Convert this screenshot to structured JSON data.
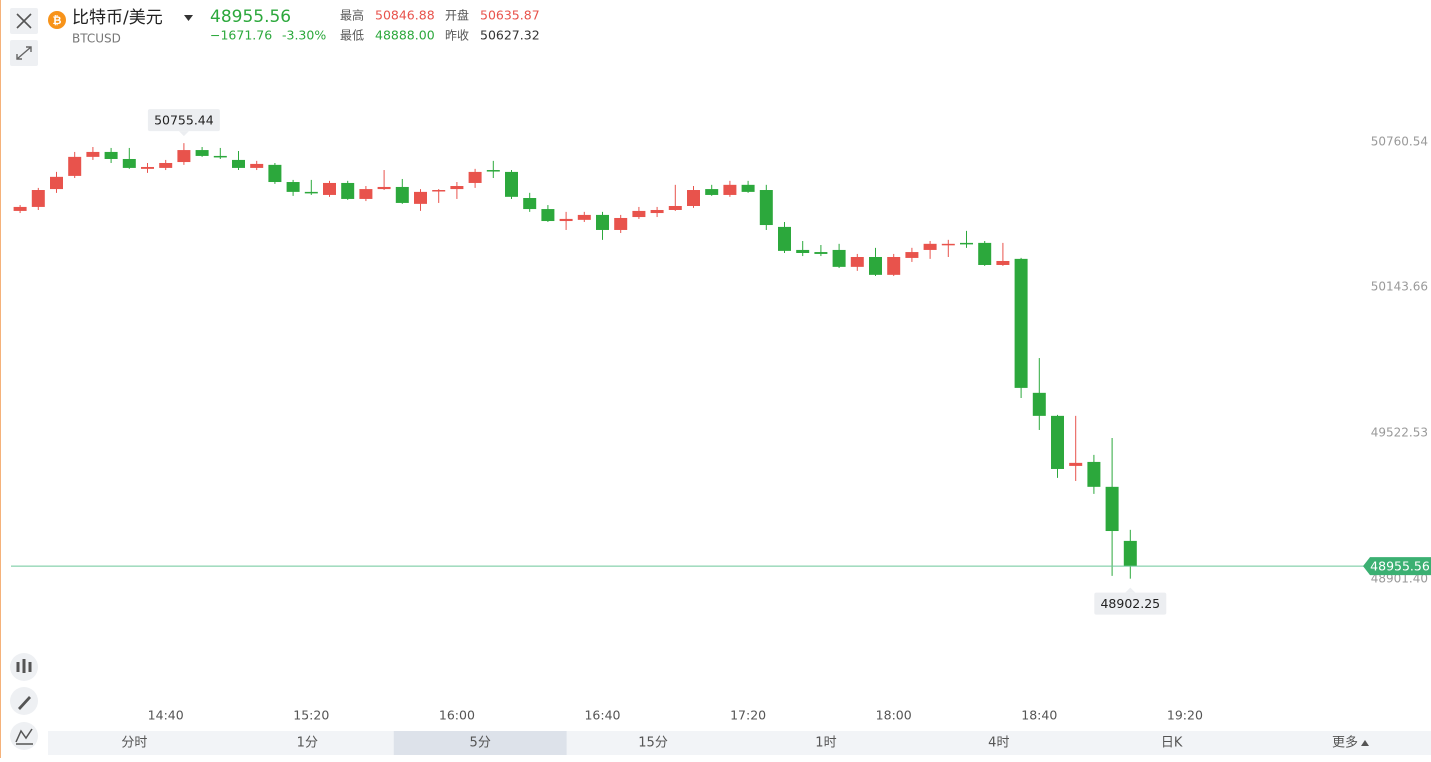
{
  "header": {
    "title": "比特币/美元",
    "symbol": "BTCUSD",
    "price": "48955.56",
    "change": "−1671.76",
    "change_percent": "-3.30%",
    "stats": [
      {
        "label": "最高",
        "value": "50846.88"
      },
      {
        "label": "开盘",
        "value": "50635.87"
      },
      {
        "label": "最低",
        "value": "48888.00"
      },
      {
        "label": "昨收",
        "value": "50627.32"
      }
    ]
  },
  "chart_data": {
    "type": "candlestick",
    "categories": [
      null,
      null,
      null,
      null,
      null,
      null,
      null,
      null,
      "14:40",
      null,
      null,
      null,
      null,
      null,
      null,
      null,
      "15:20",
      null,
      null,
      null,
      null,
      null,
      null,
      null,
      "16:00",
      null,
      null,
      null,
      null,
      null,
      null,
      null,
      "16:40",
      null,
      null,
      null,
      null,
      null,
      null,
      null,
      "17:20",
      null,
      null,
      null,
      null,
      null,
      null,
      null,
      "18:00",
      null,
      null,
      null,
      null,
      null,
      null,
      null,
      "18:40",
      null,
      null,
      null,
      null,
      null,
      null,
      null,
      "19:20",
      null,
      null,
      null,
      null,
      null,
      null,
      null,
      null,
      null
    ],
    "open": [
      50467,
      50484,
      50560,
      50616,
      50697,
      50718,
      50688,
      50646,
      50650,
      50675,
      50726,
      50701,
      50684,
      50650,
      50663,
      50590,
      50548,
      50535,
      50586,
      50518,
      50560,
      50569,
      50497,
      50552,
      50560,
      50586,
      50641,
      50633,
      50522,
      50475,
      50424,
      50429,
      50450,
      50386,
      50441,
      50458,
      50471,
      50488,
      50560,
      50535,
      50578,
      50556,
      50399,
      50301,
      50292,
      50301,
      50229,
      50271,
      50195,
      50267,
      50301,
      50322,
      50331,
      50331,
      50237,
      50263,
      49693,
      49595,
      49382,
      49399,
      49293,
      49063,
      null,
      null,
      null,
      null,
      null,
      null,
      null,
      null,
      null,
      null,
      null,
      null
    ],
    "high": [
      50492,
      50565,
      50633,
      50718,
      50739,
      50735,
      50735,
      50671,
      50684,
      50755.44,
      50739,
      50735,
      50722,
      50680,
      50671,
      50599,
      50599,
      50595,
      50595,
      50573,
      50641,
      50603,
      50560,
      50560,
      50590,
      50646,
      50680,
      50641,
      50544,
      50492,
      50463,
      50463,
      50463,
      50450,
      50484,
      50484,
      50578,
      50573,
      50578,
      50595,
      50595,
      50578,
      50420,
      50339,
      50322,
      50327,
      50284,
      50310,
      50284,
      50310,
      50339,
      50344,
      50382,
      50339,
      50331,
      50267,
      49841,
      49599,
      49595,
      49429,
      49501,
      49110,
      null,
      null,
      null,
      null,
      null,
      null,
      null,
      null,
      null,
      null,
      null,
      null
    ],
    "low": [
      50458,
      50471,
      50544,
      50607,
      50684,
      50671,
      50646,
      50629,
      50641,
      50663,
      50697,
      50688,
      50641,
      50641,
      50582,
      50531,
      50535,
      50527,
      50514,
      50509,
      50556,
      50497,
      50467,
      50501,
      50518,
      50565,
      50607,
      50518,
      50463,
      50420,
      50386,
      50420,
      50344,
      50373,
      50433,
      50441,
      50467,
      50480,
      50531,
      50527,
      50544,
      50386,
      50288,
      50275,
      50275,
      50224,
      50212,
      50190,
      50190,
      50250,
      50263,
      50271,
      50310,
      50233,
      50233,
      49671,
      49535,
      49331,
      49318,
      49263,
      48914,
      48902.25,
      null,
      null,
      null,
      null,
      null,
      null,
      null,
      null,
      null,
      null,
      null,
      null
    ],
    "close": [
      50484,
      50556,
      50612,
      50697,
      50718,
      50688,
      50650,
      50654,
      50671,
      50726,
      50701,
      50697,
      50650,
      50667,
      50590,
      50548,
      50544,
      50586,
      50518,
      50560,
      50569,
      50501,
      50548,
      50556,
      50573,
      50633,
      50637,
      50527,
      50475,
      50424,
      50433,
      50450,
      50386,
      50437,
      50467,
      50471,
      50488,
      50556,
      50535,
      50578,
      50548,
      50407,
      50297,
      50288,
      50284,
      50229,
      50271,
      50195,
      50271,
      50292,
      50327,
      50327,
      50327,
      50237,
      50254,
      49714,
      49595,
      49369,
      49395,
      49293,
      49105,
      48955.56,
      null,
      null,
      null,
      null,
      null,
      null,
      null,
      null,
      null,
      null,
      null,
      null
    ],
    "up_color": "#e8534c",
    "down_color": "#2ca83c",
    "price_line_color": "#6cc79a",
    "ylim": [
      48386,
      50939
    ],
    "yticks": [
      50760.54,
      50143.66,
      49522.53,
      {
        "value": 48901.4,
        "label": "48901.40"
      }
    ]
  },
  "toolbar": {
    "intervals": [
      "分时",
      "1分",
      "5分",
      "15分",
      "1时",
      "4时",
      "日K",
      "更多"
    ]
  }
}
